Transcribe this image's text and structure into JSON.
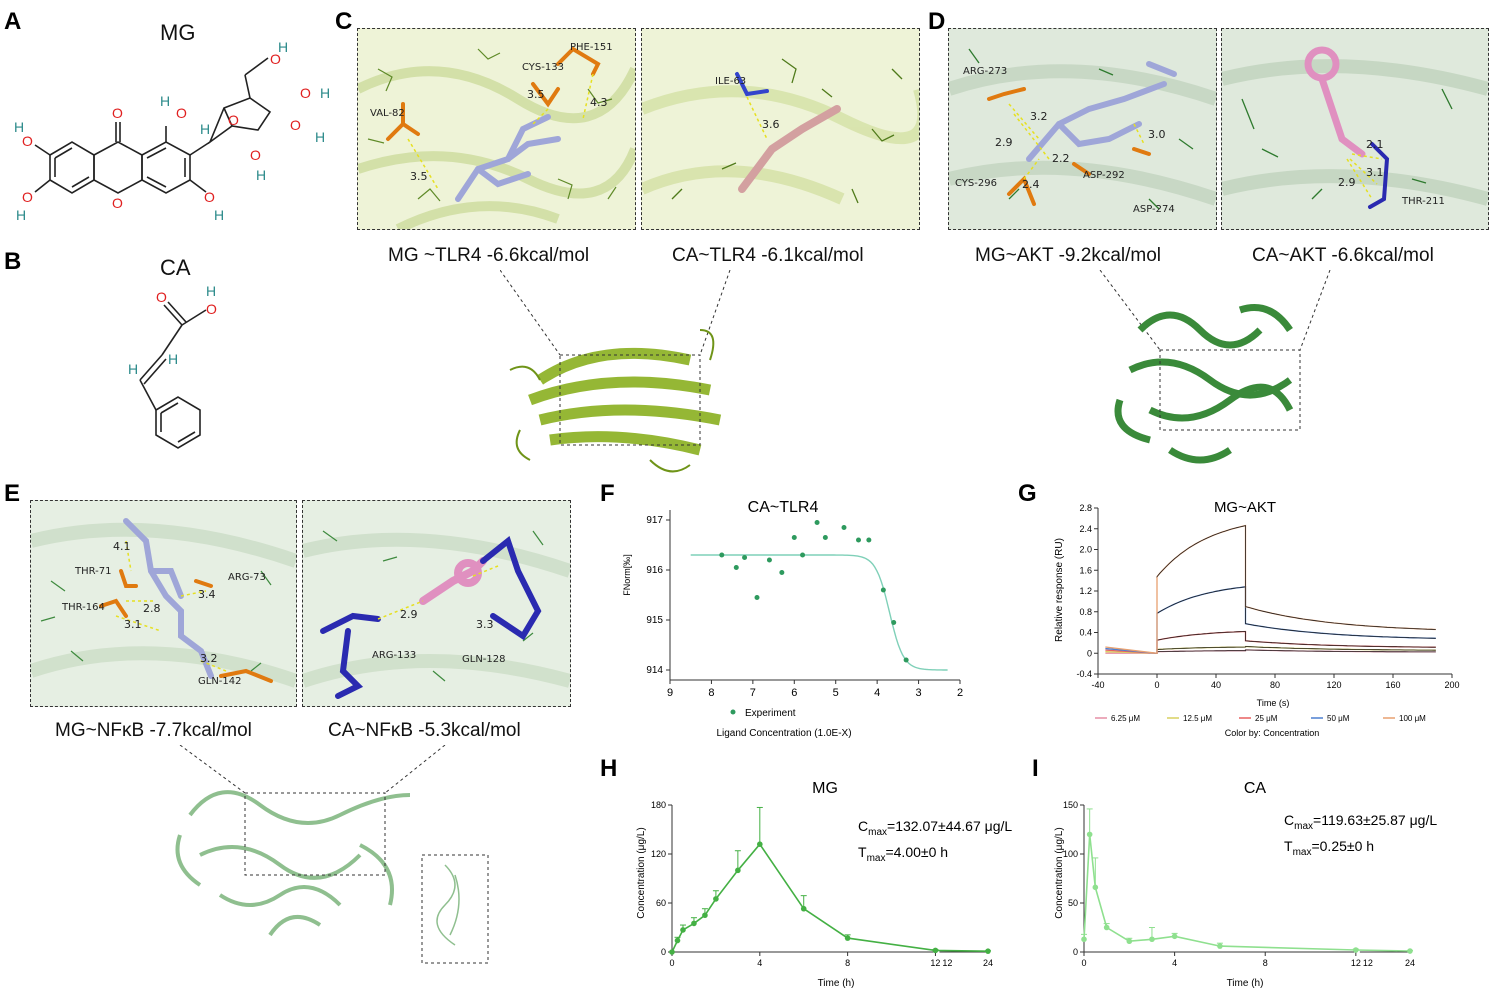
{
  "panels": {
    "A": "A",
    "B": "B",
    "C": "C",
    "D": "D",
    "E": "E",
    "F": "F",
    "G": "G",
    "H": "H",
    "I": "I"
  },
  "molecules": {
    "mg_title": "MG",
    "ca_title": "CA"
  },
  "docking": {
    "c_left_label": "MG ~TLR4 -6.6kcal/mol",
    "c_right_label": "CA~TLR4 -6.1kcal/mol",
    "d_left_label": "MG~AKT -9.2kcal/mol",
    "d_right_label": "CA~AKT -6.6kcal/mol",
    "e_left_label": "MG~NFκB -7.7kcal/mol",
    "e_right_label": "CA~NFκB -5.3kcal/mol",
    "residues": {
      "c1": [
        "VAL-82",
        "CYS-133",
        "PHE-151"
      ],
      "c1_dist": [
        "3.5",
        "3.5",
        "4.3"
      ],
      "c2": [
        "ILE-63"
      ],
      "c2_dist": [
        "3.6"
      ],
      "d1": [
        "ARG-273",
        "CYS-296",
        "ASP-292",
        "ASP-274"
      ],
      "d1_dist": [
        "3.2",
        "2.9",
        "2.2",
        "2.4",
        "3.0"
      ],
      "d2": [
        "THR-211"
      ],
      "d2_dist": [
        "2.1",
        "3.1",
        "2.9"
      ],
      "e1": [
        "THR-71",
        "THR-164",
        "ARG-73",
        "GLN-142"
      ],
      "e1_dist": [
        "4.1",
        "2.8",
        "3.4",
        "3.1",
        "3.2"
      ],
      "e2": [
        "ARG-133",
        "GLN-128"
      ],
      "e2_dist": [
        "2.9",
        "3.3"
      ]
    }
  },
  "chart_data": [
    {
      "id": "F",
      "type": "scatter",
      "title": "CA~TLR4",
      "xlabel": "Ligand Concentration (1.0E-X)",
      "ylabel": "FNorm[‰]",
      "xlim": [
        9,
        2
      ],
      "ylim": [
        913.8,
        917.2
      ],
      "xticks": [
        9,
        8,
        7,
        6,
        5,
        4,
        3,
        2
      ],
      "yticks": [
        914,
        915,
        916,
        917
      ],
      "legend": "Experiment",
      "points": [
        [
          7.75,
          916.3
        ],
        [
          7.4,
          916.05
        ],
        [
          7.2,
          916.25
        ],
        [
          6.9,
          915.45
        ],
        [
          6.6,
          916.2
        ],
        [
          6.3,
          915.95
        ],
        [
          6.0,
          916.65
        ],
        [
          5.8,
          916.3
        ],
        [
          5.45,
          916.95
        ],
        [
          5.25,
          916.65
        ],
        [
          4.8,
          916.85
        ],
        [
          4.45,
          916.6
        ],
        [
          4.2,
          916.6
        ],
        [
          3.85,
          915.6
        ],
        [
          3.6,
          914.95
        ],
        [
          3.3,
          914.2
        ]
      ],
      "fit": {
        "top": 916.3,
        "bottom": 914.0,
        "ec50_x": 3.7
      }
    },
    {
      "id": "G",
      "type": "line",
      "title": "MG~AKT",
      "xlabel": "Time (s)",
      "ylabel": "Relative response (RU)",
      "xlim": [
        -40,
        200
      ],
      "ylim": [
        -0.4,
        2.8
      ],
      "xticks": [
        -40,
        0,
        40,
        80,
        120,
        160,
        200
      ],
      "yticks": [
        -0.4,
        0,
        0.4,
        0.8,
        1.2,
        1.6,
        2.0,
        2.4,
        2.8
      ],
      "legend_caption": "Color by: Concentration",
      "association_end_s": 60,
      "series": [
        {
          "name": "6.25 μM",
          "color": "#e58fa5",
          "plateau": 0.05,
          "end": 0.02
        },
        {
          "name": "12.5 μM",
          "color": "#d8d060",
          "plateau": 0.12,
          "end": 0.05
        },
        {
          "name": "25 μM",
          "color": "#e86060",
          "plateau": 0.42,
          "end": 0.1
        },
        {
          "name": "50 μM",
          "color": "#4c7fd0",
          "plateau": 1.28,
          "end": 0.25
        },
        {
          "name": "100 μM",
          "color": "#e8a070",
          "plateau": 2.46,
          "end": 0.4
        }
      ]
    },
    {
      "id": "H",
      "type": "line",
      "title": "MG",
      "xlabel": "Time (h)",
      "ylabel": "Concentration (μg/L)",
      "ylim": [
        0,
        180
      ],
      "yticks": [
        0,
        60,
        120,
        180
      ],
      "xticks_a": [
        0,
        4,
        8,
        12
      ],
      "xticks_b": [
        12,
        24
      ],
      "cmax": "Cₘₐₓ=132.07±44.67 μg/L",
      "tmax": "Tₘₐₓ=4.00±0 h",
      "cmax_prefix": "C",
      "cmax_sub": "max",
      "cmax_val": "=132.07±44.67 μg/L",
      "tmax_prefix": "T",
      "tmax_sub": "max",
      "tmax_val": "=4.00±0 h",
      "color": "#44b044",
      "x": [
        0,
        0.25,
        0.5,
        1,
        1.5,
        2,
        3,
        4,
        6,
        8,
        12,
        24
      ],
      "y": [
        0,
        14,
        27,
        35,
        45,
        65,
        100,
        132,
        53,
        17,
        2,
        1
      ],
      "err": [
        0,
        4,
        6,
        7,
        8,
        10,
        24,
        45,
        16,
        4,
        1,
        0.5
      ]
    },
    {
      "id": "I",
      "type": "line",
      "title": "CA",
      "xlabel": "Time (h)",
      "ylabel": "Concentration (μg/L)",
      "ylim": [
        0,
        150
      ],
      "yticks": [
        0,
        50,
        100,
        150
      ],
      "xticks_a": [
        0,
        4,
        8,
        12
      ],
      "xticks_b": [
        12,
        24
      ],
      "cmax_prefix": "C",
      "cmax_sub": "max",
      "cmax_val": "=119.63±25.87 μg/L",
      "tmax_prefix": "T",
      "tmax_sub": "max",
      "tmax_val": "=0.25±0 h",
      "color": "#8fe08f",
      "x": [
        0,
        0.25,
        0.5,
        1,
        2,
        3,
        4,
        6,
        12,
        24
      ],
      "y": [
        13,
        120,
        66,
        25,
        11,
        13,
        16,
        6,
        2,
        1
      ],
      "err": [
        5,
        26,
        30,
        4,
        3,
        12,
        3,
        3,
        1,
        0.5
      ]
    }
  ]
}
